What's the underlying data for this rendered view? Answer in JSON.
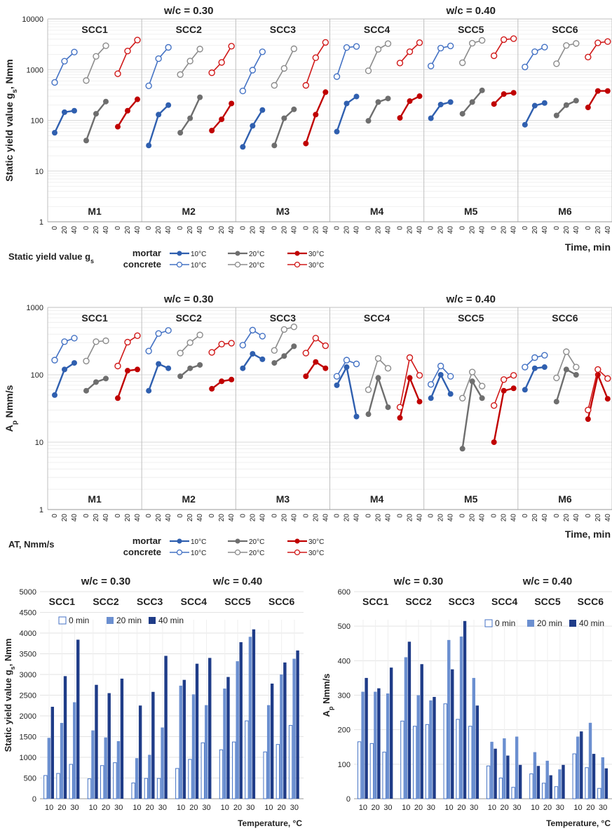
{
  "colors": {
    "c10": "#2f5faf",
    "c20": "#6e6e6e",
    "c30": "#c00000",
    "c10o": "#4472c4",
    "c20o": "#8c8c8c",
    "c30o": "#d01818",
    "bar0_fill": "#ffffff",
    "bar0_stroke": "#4472c4",
    "bar20": "#6b8fd0",
    "bar40": "#1f3c88",
    "grid": "#d9d9d9",
    "panel_sep": "#bfbfbf"
  },
  "chart_data": [
    {
      "type": "line",
      "y_scale": "log",
      "ylim": [
        1,
        10000
      ],
      "yticks": [
        "1",
        "10",
        "100",
        "1000",
        "10000"
      ],
      "ylabel": "Static yield value gs, Nmm",
      "xlabel": "Time, min",
      "group_headers": [
        "w/c = 0.30",
        "w/c = 0.40"
      ],
      "panels": [
        "SCC1",
        "SCC2",
        "SCC3",
        "SCC4",
        "SCC5",
        "SCC6"
      ],
      "panels_bottom": [
        "M1",
        "M2",
        "M3",
        "M4",
        "M5",
        "M6"
      ],
      "x_ticks": [
        "0",
        "20",
        "40"
      ],
      "temperatures": [
        "10°C",
        "20°C",
        "30°C"
      ],
      "legend": {
        "title": "Static yield value gs",
        "rows": [
          "mortar",
          "concrete"
        ],
        "entries": [
          "10°C",
          "20°C",
          "30°C"
        ]
      },
      "mortar": [
        [
          [
            57,
            145,
            155
          ],
          [
            40,
            135,
            235
          ],
          [
            75,
            155,
            260
          ]
        ],
        [
          [
            32,
            130,
            200
          ],
          [
            57,
            110,
            285
          ],
          [
            63,
            105,
            215
          ]
        ],
        [
          [
            30,
            78,
            160
          ],
          [
            32,
            110,
            165
          ],
          [
            35,
            130,
            360
          ]
        ],
        [
          [
            60,
            215,
            295
          ],
          [
            98,
            230,
            270
          ],
          [
            112,
            240,
            300
          ]
        ],
        [
          [
            110,
            205,
            230
          ],
          [
            135,
            230,
            390
          ],
          [
            210,
            330,
            350
          ]
        ],
        [
          [
            82,
            195,
            220
          ],
          [
            125,
            200,
            245
          ],
          [
            180,
            380,
            380
          ]
        ]
      ],
      "concrete": [
        [
          [
            560,
            1470,
            2220
          ],
          [
            610,
            1830,
            2960
          ],
          [
            830,
            2330,
            3840
          ]
        ],
        [
          [
            480,
            1650,
            2750
          ],
          [
            800,
            1480,
            2550
          ],
          [
            870,
            1390,
            2900
          ]
        ],
        [
          [
            380,
            980,
            2250
          ],
          [
            490,
            1060,
            2580
          ],
          [
            490,
            1720,
            3450
          ]
        ],
        [
          [
            730,
            2730,
            2870
          ],
          [
            950,
            2520,
            3260
          ],
          [
            1350,
            2260,
            3400
          ]
        ],
        [
          [
            1180,
            2660,
            2940
          ],
          [
            1370,
            3320,
            3780
          ],
          [
            1880,
            3910,
            4090
          ]
        ],
        [
          [
            1130,
            2260,
            2780
          ],
          [
            1310,
            3000,
            3290
          ],
          [
            1770,
            3380,
            3580
          ]
        ]
      ]
    },
    {
      "type": "line",
      "y_scale": "log",
      "ylim": [
        1,
        1000
      ],
      "yticks": [
        "1",
        "10",
        "100",
        "1000"
      ],
      "ylabel": "Ap Nmm/s",
      "xlabel": "Time, min",
      "group_headers": [
        "w/c = 0.30",
        "w/c = 0.40"
      ],
      "panels": [
        "SCC1",
        "SCC2",
        "SCC3",
        "SCC4",
        "SCC5",
        "SCC6"
      ],
      "panels_bottom": [
        "M1",
        "M2",
        "M3",
        "M4",
        "M5",
        "M6"
      ],
      "x_ticks": [
        "0",
        "20",
        "40"
      ],
      "temperatures": [
        "10°C",
        "20°C",
        "30°C"
      ],
      "legend": {
        "title": "AT, Nmm/s",
        "rows": [
          "mortar",
          "concrete"
        ],
        "entries": [
          "10°C",
          "20°C",
          "30°C"
        ]
      },
      "mortar": [
        [
          [
            50,
            120,
            150
          ],
          [
            58,
            78,
            88
          ],
          [
            45,
            115,
            120
          ]
        ],
        [
          [
            58,
            145,
            125
          ],
          [
            95,
            125,
            140
          ],
          [
            62,
            80,
            85
          ]
        ],
        [
          [
            125,
            205,
            170
          ],
          [
            150,
            190,
            265
          ],
          [
            95,
            155,
            125
          ]
        ],
        [
          [
            70,
            130,
            24
          ],
          [
            26,
            90,
            33
          ],
          [
            23,
            90,
            40
          ]
        ],
        [
          [
            45,
            100,
            52
          ],
          [
            8,
            80,
            45
          ],
          [
            10,
            58,
            63
          ]
        ],
        [
          [
            60,
            125,
            130
          ],
          [
            40,
            120,
            100
          ],
          [
            22,
            100,
            44
          ]
        ]
      ],
      "concrete": [
        [
          [
            165,
            310,
            350
          ],
          [
            160,
            310,
            320
          ],
          [
            135,
            305,
            380
          ]
        ],
        [
          [
            225,
            410,
            455
          ],
          [
            210,
            300,
            390
          ],
          [
            215,
            285,
            295
          ]
        ],
        [
          [
            275,
            460,
            375
          ],
          [
            230,
            470,
            515
          ],
          [
            210,
            350,
            270
          ]
        ],
        [
          [
            95,
            165,
            145
          ],
          [
            60,
            175,
            125
          ],
          [
            33,
            180,
            98
          ]
        ],
        [
          [
            72,
            135,
            95
          ],
          [
            45,
            110,
            68
          ],
          [
            35,
            85,
            98
          ]
        ],
        [
          [
            130,
            180,
            195
          ],
          [
            90,
            220,
            130
          ],
          [
            30,
            120,
            88
          ]
        ]
      ]
    },
    {
      "type": "bar",
      "ylim": [
        0,
        5000
      ],
      "yticks": [
        "0",
        "500",
        "1000",
        "1500",
        "2000",
        "2500",
        "3000",
        "3500",
        "4000",
        "4500",
        "5000"
      ],
      "ylabel": "Static yield value gs, Nmm",
      "xlabel": "Temperature, °C",
      "group_headers": [
        "w/c = 0.30",
        "w/c = 0.40"
      ],
      "groups": [
        "SCC1",
        "SCC2",
        "SCC3",
        "SCC4",
        "SCC5",
        "SCC6"
      ],
      "categories": [
        "10",
        "20",
        "30"
      ],
      "series_names": [
        "0 min",
        "20 min",
        "40 min"
      ],
      "values": [
        [
          [
            560,
            1470,
            2220
          ],
          [
            610,
            1830,
            2960
          ],
          [
            830,
            2330,
            3840
          ]
        ],
        [
          [
            480,
            1650,
            2750
          ],
          [
            800,
            1480,
            2550
          ],
          [
            870,
            1390,
            2900
          ]
        ],
        [
          [
            380,
            980,
            2250
          ],
          [
            490,
            1060,
            2580
          ],
          [
            490,
            1720,
            3450
          ]
        ],
        [
          [
            730,
            2730,
            2870
          ],
          [
            950,
            2520,
            3260
          ],
          [
            1350,
            2260,
            3400
          ]
        ],
        [
          [
            1180,
            2660,
            2940
          ],
          [
            1370,
            3320,
            3780
          ],
          [
            1880,
            3910,
            4090
          ]
        ],
        [
          [
            1130,
            2260,
            2780
          ],
          [
            1310,
            3000,
            3290
          ],
          [
            1770,
            3380,
            3580
          ]
        ]
      ]
    },
    {
      "type": "bar",
      "ylim": [
        0,
        600
      ],
      "yticks": [
        "0",
        "100",
        "200",
        "300",
        "400",
        "500",
        "600"
      ],
      "ylabel": "Ap Nmm/s",
      "xlabel": "Temperature, °C",
      "group_headers": [
        "w/c = 0.30",
        "w/c = 0.40"
      ],
      "groups": [
        "SCC1",
        "SCC2",
        "SCC3",
        "SCC4",
        "SCC5",
        "SCC6"
      ],
      "categories": [
        "10",
        "20",
        "30"
      ],
      "series_names": [
        "0 min",
        "20 min",
        "40 min"
      ],
      "values": [
        [
          [
            165,
            310,
            350
          ],
          [
            160,
            310,
            320
          ],
          [
            135,
            305,
            380
          ]
        ],
        [
          [
            225,
            410,
            455
          ],
          [
            210,
            300,
            390
          ],
          [
            215,
            285,
            295
          ]
        ],
        [
          [
            275,
            460,
            375
          ],
          [
            230,
            470,
            515
          ],
          [
            210,
            350,
            270
          ]
        ],
        [
          [
            95,
            165,
            145
          ],
          [
            60,
            175,
            125
          ],
          [
            33,
            180,
            98
          ]
        ],
        [
          [
            72,
            135,
            95
          ],
          [
            45,
            110,
            68
          ],
          [
            35,
            85,
            98
          ]
        ],
        [
          [
            130,
            180,
            195
          ],
          [
            90,
            220,
            130
          ],
          [
            30,
            120,
            88
          ]
        ]
      ]
    }
  ]
}
